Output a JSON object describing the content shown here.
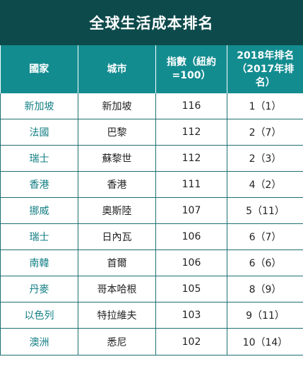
{
  "title": "全球生活成本排名",
  "headers": {
    "country": "國家",
    "city": "城市",
    "index": "指數（紐約=100）",
    "rank": "2018年排名（2017年排名）"
  },
  "rows": [
    {
      "country": "新加坡",
      "city": "新加坡",
      "index": "116",
      "rank": "1（1）"
    },
    {
      "country": "法國",
      "city": "巴黎",
      "index": "112",
      "rank": "2（7）"
    },
    {
      "country": "瑞士",
      "city": "蘇黎世",
      "index": "112",
      "rank": "2（3）"
    },
    {
      "country": "香港",
      "city": "香港",
      "index": "111",
      "rank": "4（2）"
    },
    {
      "country": "挪威",
      "city": "奧斯陸",
      "index": "107",
      "rank": "5（11）"
    },
    {
      "country": "瑞士",
      "city": "日內瓦",
      "index": "106",
      "rank": "6（7）"
    },
    {
      "country": "南韓",
      "city": "首爾",
      "index": "106",
      "rank": "6（6）"
    },
    {
      "country": "丹麥",
      "city": "哥本哈根",
      "index": "105",
      "rank": "8（9）"
    },
    {
      "country": "以色列",
      "city": "特拉維夫",
      "index": "103",
      "rank": "9（11）"
    },
    {
      "country": "澳洲",
      "city": "悉尼",
      "index": "102",
      "rank": "10（14）"
    }
  ],
  "colors": {
    "title_bg": "#0d4a4b",
    "header_bg": "#138c90",
    "country_text": "#147f84",
    "border": "#1f6f71"
  }
}
